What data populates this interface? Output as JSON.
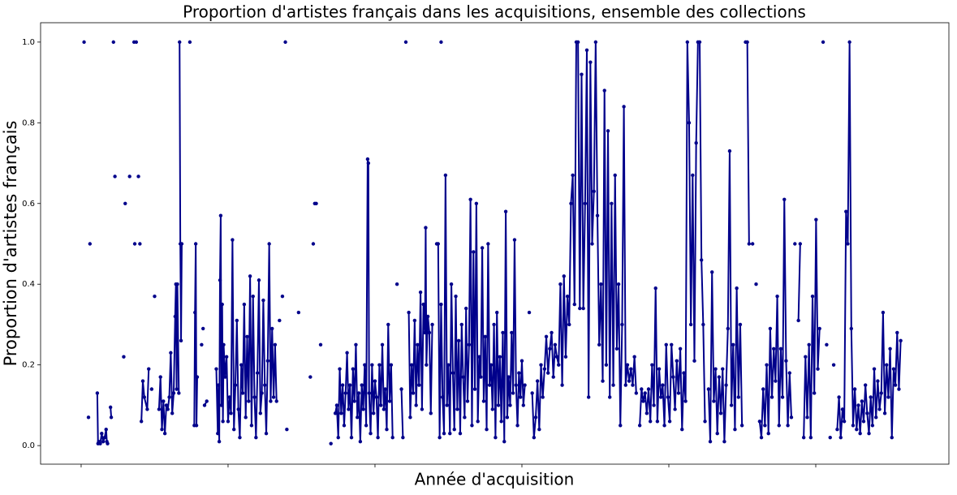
{
  "chart_data": {
    "type": "line",
    "title": "Proportion d'artistes français dans les acquisitions, ensemble des collections",
    "x_label": "Année d'acquisition",
    "y_label": "Proportion d'artistes français",
    "color": "#00008b",
    "xlim": [
      -0.276,
      5.906
    ],
    "xticks": [
      0,
      1,
      2,
      3,
      4,
      5
    ],
    "ylim": [
      -0.046,
      1.048
    ],
    "yticks": [
      {
        "value": 0,
        "label": "0.0"
      },
      0.2,
      0.4,
      0.6,
      0.8,
      {
        "value": 1,
        "label": "1.0"
      }
    ],
    "x": [
      0.02,
      0.03,
      0.05,
      0.055,
      0.06,
      0.07,
      0.11,
      0.115,
      0.12,
      0.13,
      0.14,
      0.15,
      0.16,
      0.17,
      0.175,
      0.18,
      0.19,
      0.2,
      0.205,
      0.21,
      0.22,
      0.225,
      0.23,
      0.24,
      0.29,
      0.295,
      0.3,
      0.31,
      0.33,
      0.335,
      0.36,
      0.362,
      0.365,
      0.37,
      0.375,
      0.38,
      0.39,
      0.395,
      0.4,
      0.405,
      0.41,
      0.42,
      0.43,
      0.45,
      0.46,
      0.47,
      0.48,
      0.49,
      0.5,
      0.51,
      0.53,
      0.54,
      0.55,
      0.56,
      0.57,
      0.58,
      0.59,
      0.6,
      0.61,
      0.62,
      0.63,
      0.64,
      0.645,
      0.65,
      0.655,
      0.665,
      0.667,
      0.67,
      0.675,
      0.68,
      0.685,
      0.69,
      0.74,
      0.745,
      0.77,
      0.775,
      0.78,
      0.785,
      0.79,
      0.8,
      0.82,
      0.825,
      0.83,
      0.835,
      0.84,
      0.855,
      0.86,
      0.92,
      0.93,
      0.935,
      0.94,
      0.945,
      0.95,
      0.955,
      0.96,
      0.965,
      0.97,
      0.98,
      0.99,
      1.0,
      1.01,
      1.02,
      1.03,
      1.04,
      1.05,
      1.06,
      1.07,
      1.08,
      1.09,
      1.1,
      1.11,
      1.12,
      1.13,
      1.14,
      1.15,
      1.16,
      1.17,
      1.18,
      1.19,
      1.2,
      1.21,
      1.22,
      1.23,
      1.24,
      1.25,
      1.26,
      1.27,
      1.28,
      1.29,
      1.3,
      1.31,
      1.32,
      1.33,
      1.34,
      1.35,
      1.355,
      1.37,
      1.375,
      1.39,
      1.395,
      1.4,
      1.405,
      1.48,
      1.485,
      1.56,
      1.565,
      1.58,
      1.585,
      1.59,
      1.6,
      1.605,
      1.63,
      1.635,
      1.7,
      1.705,
      1.73,
      1.74,
      1.75,
      1.76,
      1.77,
      1.78,
      1.79,
      1.8,
      1.81,
      1.82,
      1.83,
      1.84,
      1.85,
      1.86,
      1.87,
      1.88,
      1.89,
      1.9,
      1.91,
      1.92,
      1.93,
      1.94,
      1.95,
      1.955,
      1.96,
      1.97,
      1.98,
      1.99,
      2.0,
      2.01,
      2.02,
      2.03,
      2.04,
      2.05,
      2.06,
      2.07,
      2.08,
      2.09,
      2.1,
      2.11,
      2.12,
      2.13,
      2.15,
      2.155,
      2.18,
      2.19,
      2.195,
      2.21,
      2.215,
      2.45,
      2.455,
      2.23,
      2.24,
      2.25,
      2.26,
      2.27,
      2.28,
      2.29,
      2.3,
      2.31,
      2.32,
      2.33,
      2.34,
      2.345,
      2.35,
      2.36,
      2.37,
      2.38,
      2.39,
      2.4,
      2.42,
      2.43,
      2.44,
      2.45,
      2.46,
      2.47,
      2.48,
      2.49,
      2.5,
      2.51,
      2.52,
      2.53,
      2.54,
      2.55,
      2.56,
      2.57,
      2.58,
      2.59,
      2.6,
      2.61,
      2.62,
      2.63,
      2.64,
      2.65,
      2.66,
      2.67,
      2.68,
      2.69,
      2.7,
      2.71,
      2.72,
      2.73,
      2.74,
      2.75,
      2.76,
      2.77,
      2.78,
      2.79,
      2.8,
      2.81,
      2.82,
      2.83,
      2.84,
      2.85,
      2.86,
      2.87,
      2.88,
      2.89,
      2.9,
      2.91,
      2.92,
      2.93,
      2.94,
      2.95,
      2.96,
      2.97,
      2.98,
      2.99,
      3.0,
      3.01,
      3.02,
      3.03,
      3.05,
      3.06,
      3.07,
      3.082,
      3.094,
      3.106,
      3.118,
      3.13,
      3.142,
      3.154,
      3.166,
      3.178,
      3.19,
      3.202,
      3.214,
      3.226,
      3.238,
      3.25,
      3.262,
      3.274,
      3.286,
      3.298,
      3.31,
      3.322,
      3.334,
      3.346,
      3.358,
      3.37,
      3.382,
      3.394,
      3.406,
      3.418,
      3.43,
      3.442,
      3.454,
      3.466,
      3.478,
      3.49,
      3.502,
      3.514,
      3.526,
      3.538,
      3.55,
      3.562,
      3.574,
      3.586,
      3.598,
      3.61,
      3.622,
      3.634,
      3.646,
      3.658,
      3.67,
      3.682,
      3.694,
      3.706,
      3.718,
      3.73,
      3.742,
      3.754,
      3.766,
      3.778,
      3.79,
      3.802,
      3.814,
      3.826,
      3.838,
      3.85,
      3.862,
      3.874,
      3.886,
      3.898,
      3.91,
      3.922,
      3.934,
      3.946,
      3.958,
      3.97,
      3.982,
      3.994,
      4.006,
      4.018,
      4.03,
      4.042,
      4.054,
      4.066,
      4.078,
      4.09,
      4.102,
      4.114,
      4.126,
      4.138,
      4.15,
      4.162,
      4.174,
      4.186,
      4.198,
      4.21,
      4.222,
      4.234,
      4.246,
      4.258,
      4.27,
      4.282,
      4.294,
      4.306,
      4.318,
      4.33,
      4.342,
      4.354,
      4.366,
      4.378,
      4.39,
      4.402,
      4.414,
      4.426,
      4.438,
      4.45,
      4.462,
      4.474,
      4.486,
      4.498,
      4.51,
      4.522,
      4.534,
      4.546,
      4.558,
      4.57,
      4.582,
      4.594,
      4.606,
      4.618,
      4.63,
      4.642,
      4.654,
      4.666,
      4.678,
      4.69,
      4.702,
      4.714,
      4.726,
      4.738,
      4.75,
      4.762,
      4.774,
      4.786,
      4.798,
      4.81,
      4.822,
      4.834,
      4.846,
      4.858,
      4.87,
      4.882,
      4.894,
      4.906,
      4.918,
      4.93,
      4.942,
      4.954,
      4.966,
      4.978,
      4.99,
      5.002,
      5.014,
      5.026,
      5.038,
      5.05,
      5.062,
      5.074,
      5.086,
      5.098,
      5.11,
      5.122,
      5.134,
      5.146,
      5.158,
      5.17,
      5.182,
      5.194,
      5.206,
      5.218,
      5.23,
      5.242,
      5.254,
      5.266,
      5.278,
      5.29,
      5.302,
      5.314,
      5.326,
      5.338,
      5.35,
      5.362,
      5.374,
      5.386,
      5.398,
      5.41,
      5.422,
      5.434,
      5.446,
      5.458,
      5.47,
      5.482,
      5.494,
      5.506,
      5.518,
      5.53,
      5.542,
      5.554,
      5.566,
      5.578
    ],
    "values": [
      1.0,
      null,
      0.07,
      null,
      0.5,
      null,
      0.13,
      0.005,
      0.01,
      0.005,
      0.03,
      0.01,
      0.02,
      0.04,
      0.01,
      0.005,
      null,
      0.095,
      0.07,
      null,
      1.0,
      null,
      0.667,
      null,
      0.22,
      null,
      0.6,
      null,
      0.667,
      null,
      1.0,
      null,
      0.5,
      null,
      1.0,
      null,
      0.667,
      null,
      0.5,
      null,
      0.06,
      0.16,
      0.12,
      0.09,
      0.19,
      null,
      0.14,
      null,
      0.37,
      null,
      0.09,
      0.17,
      0.04,
      0.11,
      0.03,
      0.1,
      0.09,
      0.12,
      0.23,
      0.08,
      0.13,
      0.32,
      0.4,
      0.14,
      0.4,
      0.13,
      null,
      1.0,
      0.5,
      0.26,
      0.5,
      null,
      1.0,
      null,
      0.05,
      0.33,
      0.5,
      0.05,
      0.17,
      null,
      0.25,
      null,
      0.29,
      null,
      0.1,
      0.11,
      null,
      0.19,
      0.03,
      0.15,
      0.01,
      0.41,
      0.57,
      0.1,
      0.35,
      0.06,
      0.25,
      0.17,
      0.22,
      0.06,
      0.12,
      0.08,
      0.51,
      0.04,
      0.15,
      0.31,
      0.09,
      0.02,
      0.2,
      0.13,
      0.35,
      0.07,
      0.27,
      0.11,
      0.42,
      0.05,
      0.37,
      0.12,
      0.02,
      0.18,
      0.41,
      0.08,
      0.13,
      0.36,
      0.15,
      0.03,
      0.21,
      0.5,
      0.11,
      0.29,
      0.12,
      0.25,
      0.11,
      null,
      0.31,
      null,
      0.37,
      null,
      1.0,
      null,
      0.04,
      null,
      0.33,
      null,
      0.17,
      null,
      0.5,
      null,
      0.6,
      0.6,
      null,
      0.25,
      null,
      0.005,
      null,
      0.08,
      0.1,
      0.02,
      0.19,
      0.08,
      0.15,
      0.05,
      0.13,
      0.23,
      0.09,
      0.15,
      0.02,
      0.19,
      0.11,
      0.25,
      0.07,
      0.13,
      0.01,
      0.15,
      0.09,
      0.2,
      0.05,
      0.71,
      0.7,
      0.13,
      0.03,
      0.2,
      0.08,
      0.16,
      0.12,
      0.02,
      0.2,
      0.1,
      0.25,
      0.09,
      0.14,
      0.04,
      0.3,
      0.11,
      0.2,
      0.02,
      null,
      0.4,
      null,
      0.14,
      0.02,
      null,
      1.0,
      null,
      1.0,
      null,
      0.33,
      0.07,
      0.2,
      0.13,
      0.31,
      0.1,
      0.25,
      0.15,
      0.38,
      0.09,
      0.35,
      0.28,
      0.54,
      0.2,
      0.32,
      0.28,
      0.08,
      0.3,
      null,
      0.5,
      0.5,
      0.02,
      0.35,
      0.12,
      0.03,
      0.67,
      0.1,
      0.2,
      0.03,
      0.4,
      0.18,
      0.04,
      0.37,
      0.09,
      0.26,
      0.03,
      0.3,
      0.17,
      0.07,
      0.34,
      0.11,
      0.25,
      0.61,
      0.05,
      0.48,
      0.14,
      0.6,
      0.06,
      0.22,
      0.17,
      0.49,
      0.11,
      0.27,
      0.04,
      0.5,
      0.15,
      0.2,
      0.09,
      0.3,
      0.02,
      0.33,
      0.1,
      0.22,
      0.06,
      0.28,
      0.01,
      0.58,
      0.07,
      0.17,
      0.1,
      0.28,
      0.13,
      0.51,
      0.15,
      0.05,
      0.18,
      0.12,
      0.21,
      0.1,
      0.15,
      null,
      0.33,
      null,
      0.13,
      0.02,
      0.07,
      0.16,
      0.04,
      0.2,
      0.12,
      0.19,
      0.27,
      0.18,
      0.24,
      0.28,
      0.17,
      0.25,
      0.22,
      0.2,
      0.4,
      0.15,
      0.42,
      0.22,
      0.37,
      0.3,
      0.6,
      0.67,
      0.35,
      1.0,
      1.0,
      0.34,
      0.92,
      0.34,
      0.6,
      0.98,
      0.12,
      0.95,
      0.5,
      0.63,
      1.0,
      0.57,
      0.25,
      0.4,
      0.16,
      0.88,
      0.2,
      0.78,
      0.12,
      0.6,
      0.15,
      0.67,
      0.24,
      0.4,
      0.05,
      0.3,
      0.84,
      0.15,
      0.2,
      0.16,
      0.19,
      0.15,
      0.22,
      0.13,
      null,
      0.05,
      0.14,
      0.11,
      0.13,
      0.08,
      0.14,
      0.06,
      0.2,
      0.1,
      0.39,
      0.06,
      0.19,
      0.12,
      0.15,
      0.05,
      0.25,
      0.12,
      0.06,
      0.25,
      0.17,
      0.09,
      0.21,
      0.13,
      0.24,
      0.04,
      0.18,
      0.11,
      1.0,
      0.8,
      0.3,
      0.67,
      0.21,
      0.75,
      1.0,
      1.0,
      0.46,
      0.3,
      0.06,
      null,
      0.14,
      0.01,
      0.43,
      0.11,
      0.19,
      0.03,
      0.17,
      0.08,
      0.19,
      0.01,
      0.15,
      0.29,
      0.73,
      0.1,
      0.25,
      0.04,
      0.39,
      0.12,
      0.3,
      0.05,
      null,
      1.0,
      1.0,
      0.5,
      null,
      0.5,
      null,
      0.4,
      null,
      0.06,
      0.02,
      0.14,
      0.05,
      0.2,
      0.03,
      0.29,
      0.12,
      0.24,
      0.16,
      0.37,
      0.05,
      0.24,
      0.12,
      0.61,
      0.21,
      0.05,
      0.18,
      0.07,
      null,
      0.5,
      null,
      0.31,
      0.5,
      null,
      0.02,
      0.22,
      0.07,
      0.25,
      0.02,
      0.37,
      0.13,
      0.56,
      0.19,
      0.29,
      null,
      1.0,
      null,
      0.25,
      null,
      0.02,
      null,
      0.2,
      null,
      0.04,
      0.12,
      0.02,
      0.09,
      0.06,
      0.58,
      0.5,
      1.0,
      0.29,
      0.05,
      0.14,
      0.04,
      0.1,
      0.03,
      0.11,
      0.06,
      0.15,
      0.08,
      0.03,
      0.12,
      0.05,
      0.19,
      0.07,
      0.16,
      0.09,
      0.13,
      0.33,
      0.08,
      0.2,
      0.12,
      0.24,
      0.02,
      0.19,
      0.15,
      0.28,
      0.14,
      0.26
    ]
  }
}
